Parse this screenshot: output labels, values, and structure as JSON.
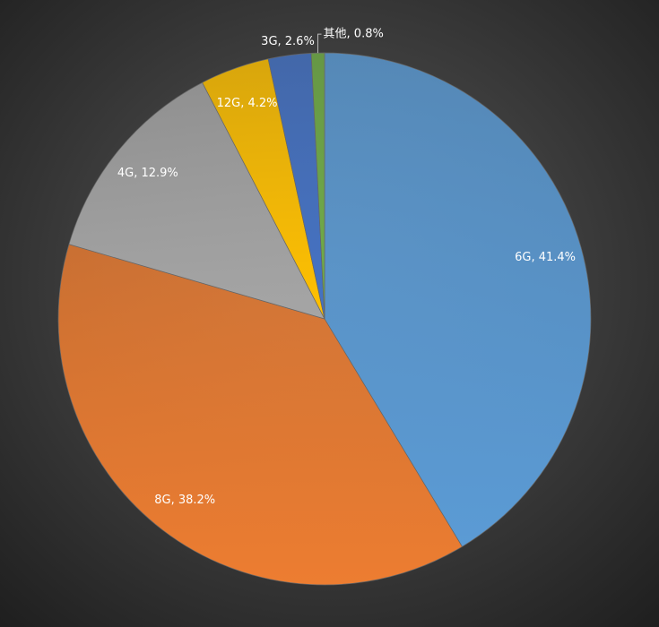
{
  "chart_data": {
    "type": "pie",
    "values": [
      41.4,
      38.2,
      12.9,
      4.2,
      2.6,
      0.8
    ],
    "value_labels": [
      "6G, 41.4%",
      "8G, 38.2%",
      "4G, 12.9%",
      "12G, 4.2%",
      "3G, 2.6%",
      "其他, 0.8%"
    ],
    "colors": [
      "#5b9bd5",
      "#ed7d31",
      "#a5a5a5",
      "#ffc000",
      "#4472c4",
      "#70ad47"
    ]
  }
}
